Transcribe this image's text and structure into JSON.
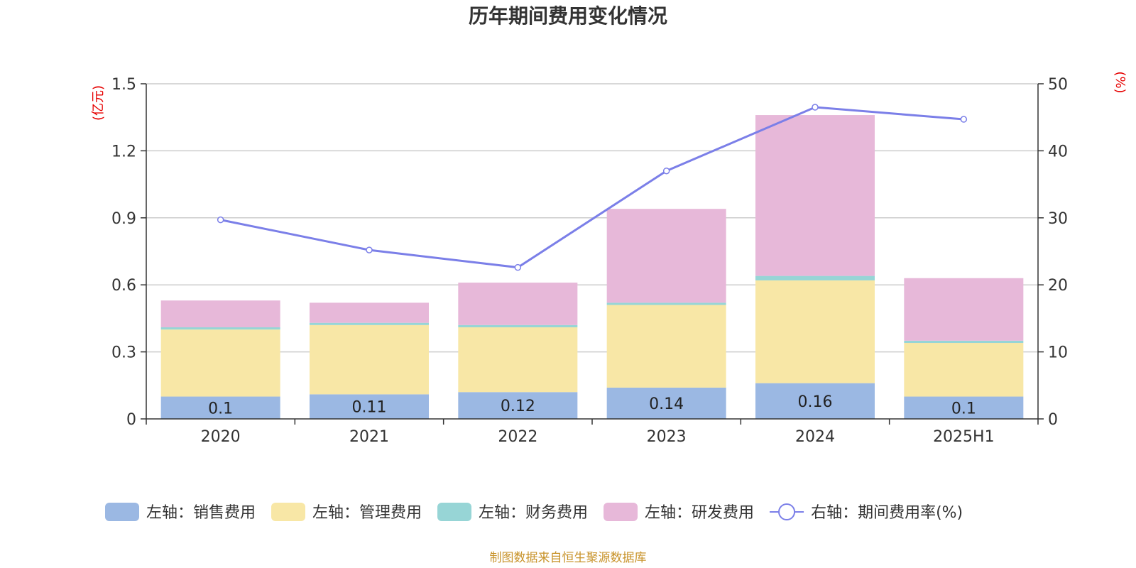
{
  "chart_data": {
    "type": "bar",
    "stacked": true,
    "title": "历年期间费用变化情况",
    "categories": [
      "2020",
      "2021",
      "2022",
      "2023",
      "2024",
      "2025H1"
    ],
    "left_axis": {
      "unit_label": "(亿元)",
      "range": [
        0,
        1.5
      ],
      "ticks": [
        "0",
        "0.3",
        "0.6",
        "0.9",
        "1.2",
        "1.5"
      ]
    },
    "right_axis": {
      "unit_label": "(%)",
      "range": [
        0,
        50
      ],
      "ticks": [
        "0",
        "10",
        "20",
        "30",
        "40",
        "50"
      ]
    },
    "series": [
      {
        "name": "左轴：销售费用",
        "axis": "left",
        "kind": "bar",
        "color": "#9bb8e3",
        "values": [
          0.1,
          0.11,
          0.12,
          0.14,
          0.16,
          0.1
        ],
        "labels": [
          "0.1",
          "0.11",
          "0.12",
          "0.14",
          "0.16",
          "0.1"
        ]
      },
      {
        "name": "左轴：管理费用",
        "axis": "left",
        "kind": "bar",
        "color": "#f8e7a6",
        "values": [
          0.3,
          0.31,
          0.29,
          0.37,
          0.46,
          0.24
        ]
      },
      {
        "name": "左轴：财务费用",
        "axis": "left",
        "kind": "bar",
        "color": "#97d5d6",
        "values": [
          0.01,
          0.01,
          0.01,
          0.01,
          0.02,
          0.01
        ]
      },
      {
        "name": "左轴：研发费用",
        "axis": "left",
        "kind": "bar",
        "color": "#e7b8d9",
        "values": [
          0.12,
          0.09,
          0.19,
          0.42,
          0.72,
          0.28
        ]
      },
      {
        "name": "右轴：期间费用率(%)",
        "axis": "right",
        "kind": "line",
        "color": "#7b7fe8",
        "values": [
          29.7,
          25.2,
          22.6,
          37.0,
          46.5,
          44.7
        ]
      }
    ],
    "legend_position": "bottom",
    "grid": true
  },
  "source": "制图数据来自恒生聚源数据库"
}
